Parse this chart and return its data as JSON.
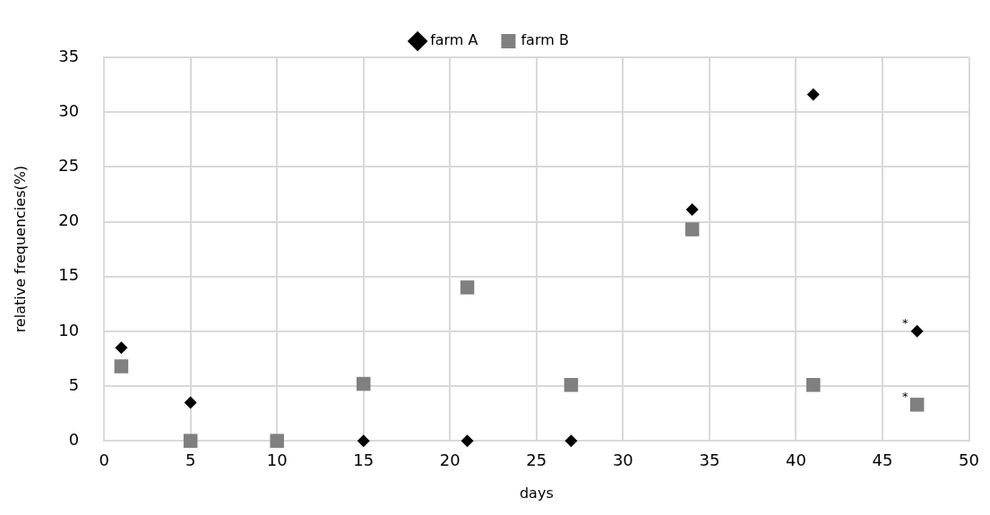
{
  "chart_data": {
    "type": "scatter",
    "xlabel": "days",
    "ylabel": "relative frequencies(%)",
    "xlim": [
      0,
      50
    ],
    "xticks": [
      0,
      5,
      10,
      15,
      20,
      25,
      30,
      35,
      40,
      45,
      50
    ],
    "ylim": [
      0,
      35
    ],
    "yticks": [
      0,
      5,
      10,
      15,
      20,
      25,
      30,
      35
    ],
    "grid": true,
    "legend": "top",
    "series": [
      {
        "name": "farm A",
        "color": "#000000",
        "marker": "diamond",
        "x": [
          1,
          5,
          15,
          21,
          27,
          34,
          41,
          47
        ],
        "values": [
          8.5,
          3.5,
          0,
          0,
          0,
          21.1,
          31.6,
          10
        ]
      },
      {
        "name": "farm B",
        "color": "#808080",
        "marker": "square",
        "x": [
          1,
          5,
          10,
          15,
          21,
          27,
          34,
          41,
          47
        ],
        "values": [
          6.8,
          0,
          0,
          5.2,
          14,
          5.1,
          19.3,
          5.1,
          3.3
        ]
      }
    ],
    "annotations": [
      {
        "text": "*",
        "x": 47,
        "y": 10
      },
      {
        "text": "*",
        "x": 47,
        "y": 3.3
      }
    ]
  }
}
